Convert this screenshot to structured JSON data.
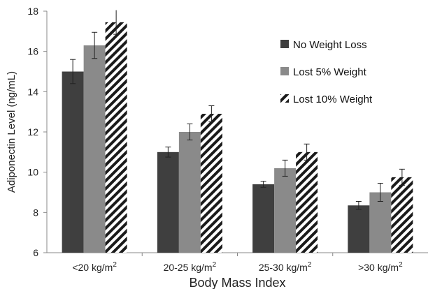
{
  "chart_data": {
    "type": "bar",
    "xlabel": "Body Mass Index",
    "ylabel": "Adiponectin Level (ng/mL)",
    "ylim": [
      6,
      18
    ],
    "yticks": [
      6,
      8,
      10,
      12,
      14,
      16,
      18
    ],
    "categories": [
      {
        "base": "<20 kg/m",
        "sup": "2"
      },
      {
        "base": "20-25 kg/m",
        "sup": "2"
      },
      {
        "base": "25-30 kg/m",
        "sup": "2"
      },
      {
        "base": ">30 kg/m",
        "sup": "2"
      }
    ],
    "series": [
      {
        "name": "No Weight Loss",
        "values": [
          15.0,
          11.0,
          9.4,
          8.35
        ],
        "errors": [
          0.6,
          0.25,
          0.15,
          0.2
        ],
        "fill": "#3f3f3f",
        "pattern": "solid"
      },
      {
        "name": "Lost 5% Weight",
        "values": [
          16.3,
          12.0,
          10.2,
          9.0
        ],
        "errors": [
          0.65,
          0.4,
          0.4,
          0.45
        ],
        "fill": "#8a8a8a",
        "pattern": "solid"
      },
      {
        "name": "Lost 10% Weight",
        "values": [
          17.45,
          12.9,
          11.0,
          9.75
        ],
        "errors": [
          0.6,
          0.4,
          0.4,
          0.4
        ],
        "fill": "#1a1a1a",
        "pattern": "diagonal-stripes"
      }
    ],
    "legend_position": "top-right",
    "grid": false
  }
}
